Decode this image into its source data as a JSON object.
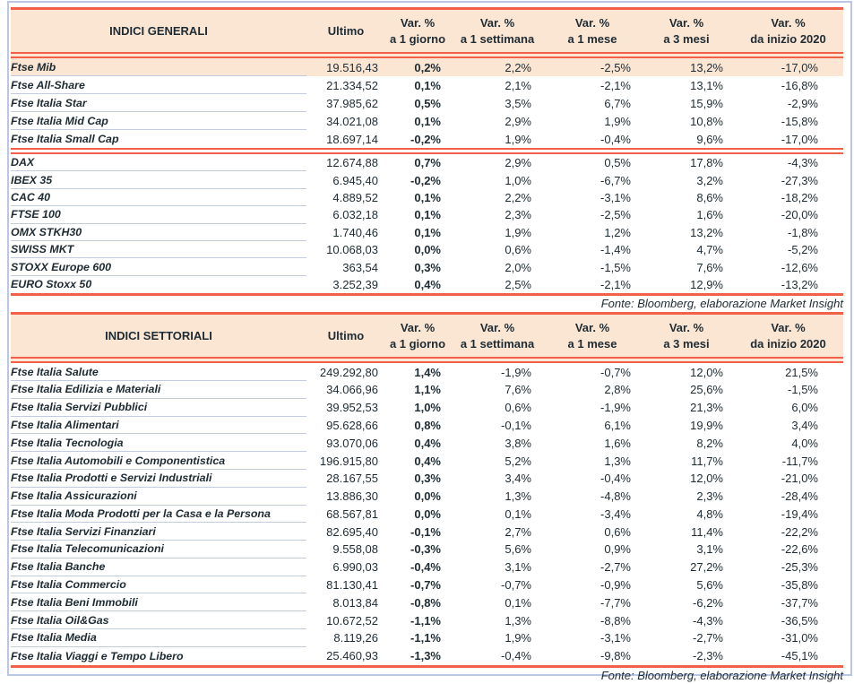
{
  "source_note": "Fonte: Bloomberg, elaborazione Market Insight",
  "colors": {
    "accent_line": "#F2604A",
    "header_bg": "#FBE6D4",
    "row_separator": "#C1CCE0",
    "frame": "#B9C7E4",
    "text": "#1E2B33"
  },
  "tables": [
    {
      "title": "INDICI GENERALI",
      "header": {
        "ultimo": "Ultimo",
        "var": "Var. %",
        "periods": [
          "a 1 giorno",
          "a 1 settimana",
          "a 1 mese",
          "a 3 mesi",
          "da inizio 2020"
        ]
      },
      "rows": [
        {
          "name": "Ftse Mib",
          "values": [
            "19.516,43",
            "0,2%",
            "2,2%",
            "-2,5%",
            "13,2%",
            "-17,0%"
          ],
          "highlight": true
        },
        {
          "name": "Ftse All-Share",
          "values": [
            "21.334,52",
            "0,1%",
            "2,1%",
            "-2,1%",
            "13,1%",
            "-16,8%"
          ]
        },
        {
          "name": "Ftse Italia Star",
          "values": [
            "37.985,62",
            "0,5%",
            "3,5%",
            "6,7%",
            "15,9%",
            "-2,9%"
          ]
        },
        {
          "name": "Ftse Italia Mid Cap",
          "values": [
            "34.021,08",
            "0,1%",
            "2,9%",
            "1,9%",
            "10,8%",
            "-15,8%"
          ]
        },
        {
          "name": "Ftse Italia Small Cap",
          "values": [
            "18.697,14",
            "-0,2%",
            "1,9%",
            "-0,4%",
            "9,6%",
            "-17,0%"
          ],
          "sep_after": true
        },
        {
          "name": "DAX",
          "values": [
            "12.674,88",
            "0,7%",
            "2,9%",
            "0,5%",
            "17,8%",
            "-4,3%"
          ]
        },
        {
          "name": "IBEX 35",
          "values": [
            "6.945,40",
            "-0,2%",
            "1,0%",
            "-6,7%",
            "3,2%",
            "-27,3%"
          ]
        },
        {
          "name": "CAC 40",
          "values": [
            "4.889,52",
            "0,1%",
            "2,2%",
            "-3,1%",
            "8,6%",
            "-18,2%"
          ]
        },
        {
          "name": "FTSE 100",
          "values": [
            "6.032,18",
            "0,1%",
            "2,3%",
            "-2,5%",
            "1,6%",
            "-20,0%"
          ]
        },
        {
          "name": "OMX STKH30",
          "values": [
            "1.740,46",
            "0,1%",
            "1,9%",
            "1,2%",
            "13,2%",
            "-1,8%"
          ]
        },
        {
          "name": "SWISS MKT",
          "values": [
            "10.068,03",
            "0,0%",
            "0,6%",
            "-1,4%",
            "4,7%",
            "-5,2%"
          ]
        },
        {
          "name": "STOXX Europe 600",
          "values": [
            "363,54",
            "0,3%",
            "2,0%",
            "-1,5%",
            "7,6%",
            "-12,6%"
          ]
        },
        {
          "name": "EURO Stoxx 50",
          "values": [
            "3.252,39",
            "0,4%",
            "2,5%",
            "-2,1%",
            "12,9%",
            "-13,2%"
          ]
        }
      ],
      "note": "Fonte: Bloomberg, elaborazione Market Insight"
    },
    {
      "title": "INDICI SETTORIALI",
      "header": {
        "ultimo": "Ultimo",
        "var": "Var. %",
        "periods": [
          "a 1 giorno",
          "a 1 settimana",
          "a 1 mese",
          "a 3 mesi",
          "da inizio 2020"
        ]
      },
      "rows": [
        {
          "name": "Ftse Italia Salute",
          "values": [
            "249.292,80",
            "1,4%",
            "-1,9%",
            "-0,7%",
            "12,0%",
            "21,5%"
          ]
        },
        {
          "name": "Ftse Italia Edilizia e Materiali",
          "values": [
            "34.066,96",
            "1,1%",
            "7,6%",
            "2,8%",
            "25,6%",
            "-1,5%"
          ]
        },
        {
          "name": "Ftse Italia Servizi Pubblici",
          "values": [
            "39.952,53",
            "1,0%",
            "0,6%",
            "-1,9%",
            "21,3%",
            "6,0%"
          ]
        },
        {
          "name": "Ftse Italia Alimentari",
          "values": [
            "95.628,66",
            "0,8%",
            "-0,1%",
            "6,1%",
            "19,9%",
            "3,4%"
          ]
        },
        {
          "name": "Ftse Italia Tecnologia",
          "values": [
            "93.070,06",
            "0,4%",
            "3,8%",
            "1,6%",
            "8,2%",
            "4,0%"
          ]
        },
        {
          "name": "Ftse Italia Automobili e Componentistica",
          "values": [
            "196.915,80",
            "0,4%",
            "5,2%",
            "1,3%",
            "11,7%",
            "-11,7%"
          ]
        },
        {
          "name": "Ftse Italia Prodotti e Servizi Industriali",
          "values": [
            "28.167,55",
            "0,3%",
            "3,4%",
            "-0,4%",
            "12,0%",
            "-21,0%"
          ]
        },
        {
          "name": "Ftse Italia Assicurazioni",
          "values": [
            "13.886,30",
            "0,0%",
            "1,3%",
            "-4,8%",
            "2,3%",
            "-28,4%"
          ]
        },
        {
          "name": "Ftse Italia Moda Prodotti per la Casa e la Persona",
          "values": [
            "68.567,81",
            "0,0%",
            "0,1%",
            "-3,4%",
            "4,8%",
            "-19,4%"
          ]
        },
        {
          "name": "Ftse Italia Servizi Finanziari",
          "values": [
            "82.695,40",
            "-0,1%",
            "2,7%",
            "0,6%",
            "11,4%",
            "-22,2%"
          ]
        },
        {
          "name": "Ftse Italia Telecomunicazioni",
          "values": [
            "9.558,08",
            "-0,3%",
            "5,6%",
            "0,9%",
            "3,1%",
            "-22,6%"
          ]
        },
        {
          "name": "Ftse Italia Banche",
          "values": [
            "6.990,03",
            "-0,4%",
            "3,1%",
            "-2,7%",
            "27,2%",
            "-25,3%"
          ]
        },
        {
          "name": "Ftse Italia Commercio",
          "values": [
            "81.130,41",
            "-0,7%",
            "-0,7%",
            "-0,9%",
            "5,6%",
            "-35,8%"
          ]
        },
        {
          "name": "Ftse Italia Beni Immobili",
          "values": [
            "8.013,84",
            "-0,8%",
            "0,1%",
            "-7,7%",
            "-6,2%",
            "-37,7%"
          ]
        },
        {
          "name": "Ftse Italia Oil&Gas",
          "values": [
            "10.672,52",
            "-1,1%",
            "1,3%",
            "-8,8%",
            "-4,3%",
            "-36,5%"
          ]
        },
        {
          "name": "Ftse Italia Media",
          "values": [
            "8.119,26",
            "-1,1%",
            "1,9%",
            "-3,1%",
            "-2,7%",
            "-31,0%"
          ]
        },
        {
          "name": "Ftse Italia Viaggi e Tempo Libero",
          "values": [
            "25.460,93",
            "-1,3%",
            "-0,4%",
            "-9,8%",
            "-2,3%",
            "-45,1%"
          ]
        }
      ],
      "note": "Fonte: Bloomberg, elaborazione Market Insight"
    }
  ]
}
